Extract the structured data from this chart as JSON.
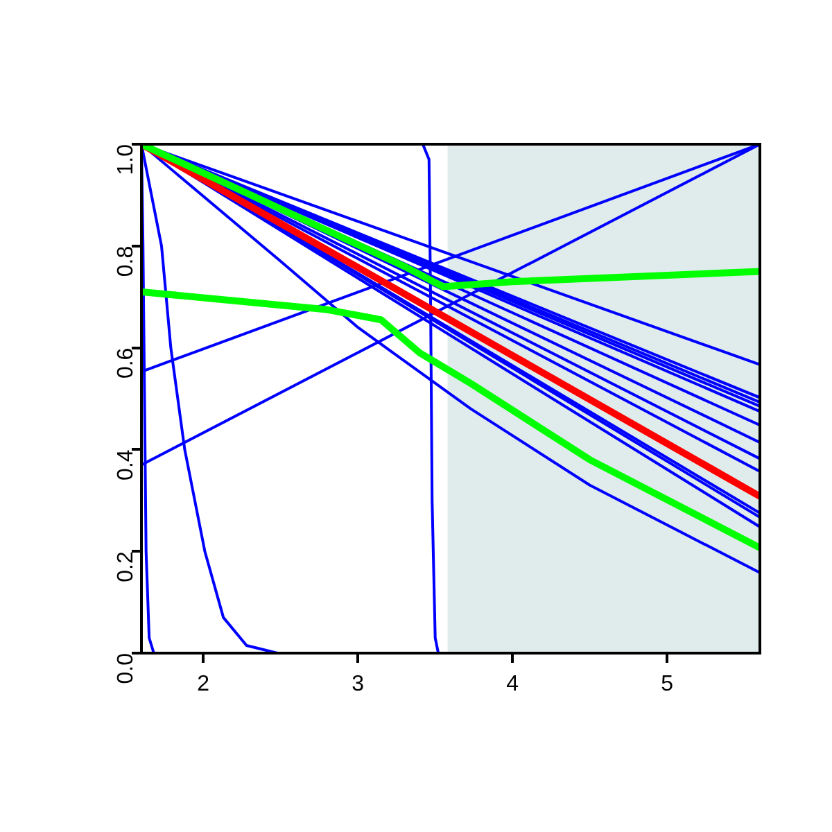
{
  "chart_data": {
    "type": "line",
    "marker": "none",
    "grid": false,
    "legend": false,
    "line_style": "solid",
    "xlim": [
      1.6,
      5.6
    ],
    "xticks": [
      2,
      3,
      4,
      5
    ],
    "ylim": [
      0,
      1
    ],
    "yticks": [
      {
        "value": 0,
        "label": "0.0"
      },
      {
        "value": 0.2,
        "label": "0.2"
      },
      {
        "value": 0.4,
        "label": "0.4"
      },
      {
        "value": 0.6,
        "label": "0.6"
      },
      {
        "value": 0.8,
        "label": "0.8"
      },
      {
        "value": 1,
        "label": "1.0"
      }
    ],
    "bands": [
      {
        "axis": "x",
        "from": 3.58,
        "to": 5.6,
        "color": "#e0ecec"
      }
    ],
    "series": [
      {
        "color": "#0000ff",
        "x": [
          1.6,
          5.6
        ],
        "values": [
          1,
          0.567
        ]
      },
      {
        "color": "#0000ff",
        "x": [
          1.6,
          5.6
        ],
        "values": [
          1,
          0.502
        ]
      },
      {
        "color": "#0000ff",
        "x": [
          1.6,
          5.6
        ],
        "values": [
          1,
          0.493
        ]
      },
      {
        "color": "#0000ff",
        "x": [
          1.6,
          5.6
        ],
        "values": [
          1,
          0.485
        ]
      },
      {
        "color": "#0000ff",
        "x": [
          1.6,
          5.6
        ],
        "values": [
          1,
          0.475
        ]
      },
      {
        "color": "#0000ff",
        "x": [
          1.6,
          5.6
        ],
        "values": [
          1,
          0.448
        ]
      },
      {
        "color": "#0000ff",
        "x": [
          1.6,
          5.6
        ],
        "values": [
          1,
          0.414
        ]
      },
      {
        "color": "#0000ff",
        "x": [
          1.6,
          5.6
        ],
        "values": [
          1,
          0.382
        ]
      },
      {
        "color": "#0000ff",
        "x": [
          1.6,
          5.6
        ],
        "values": [
          1,
          0.357
        ]
      },
      {
        "color": "#0000ff",
        "x": [
          1.6,
          5.6
        ],
        "values": [
          1,
          0.275
        ]
      },
      {
        "color": "#0000ff",
        "x": [
          1.6,
          5.6
        ],
        "values": [
          1,
          0.267
        ]
      },
      {
        "color": "#0000ff",
        "x": [
          1.6,
          5.6
        ],
        "values": [
          1,
          0.248
        ]
      },
      {
        "color": "#0000ff",
        "x": [
          1.6,
          2.5,
          3.0,
          3.73,
          4.5,
          5.6
        ],
        "values": [
          1,
          0.77,
          0.64,
          0.48,
          0.33,
          0.158
        ]
      },
      {
        "color": "#0000ff",
        "x": [
          1.6,
          5.6
        ],
        "values": [
          0.553,
          1
        ]
      },
      {
        "color": "#0000ff",
        "x": [
          1.6,
          5.6
        ],
        "values": [
          0.37,
          1
        ]
      },
      {
        "color": "#0000ff",
        "x": [
          1.6,
          1.61,
          1.62,
          1.63,
          1.65,
          1.68
        ],
        "values": [
          1,
          0.8,
          0.5,
          0.2,
          0.03,
          0
        ]
      },
      {
        "color": "#0000ff",
        "x": [
          1.6,
          1.73,
          1.79,
          1.88,
          2.01,
          2.13,
          2.28,
          2.48
        ],
        "values": [
          1,
          0.8,
          0.6,
          0.4,
          0.2,
          0.07,
          0.015,
          0
        ]
      },
      {
        "color": "#0000ff",
        "x": [
          1.6,
          3.42,
          3.46,
          3.47,
          3.48,
          3.5,
          3.52
        ],
        "values": [
          1,
          1,
          0.97,
          0.7,
          0.3,
          0.03,
          0
        ]
      },
      {
        "color": "#ff0000",
        "x": [
          1.6,
          5.6
        ],
        "values": [
          1,
          0.308
        ]
      },
      {
        "color": "#00ff00",
        "x": [
          1.6,
          3.3,
          3.55,
          4,
          5.6
        ],
        "values": [
          1,
          0.76,
          0.72,
          0.73,
          0.75
        ]
      },
      {
        "color": "#00ff00",
        "x": [
          1.6,
          2.8,
          3.15,
          3.4,
          3.73,
          4.5,
          5.6
        ],
        "values": [
          0.71,
          0.675,
          0.655,
          0.59,
          0.53,
          0.38,
          0.207
        ]
      }
    ]
  }
}
